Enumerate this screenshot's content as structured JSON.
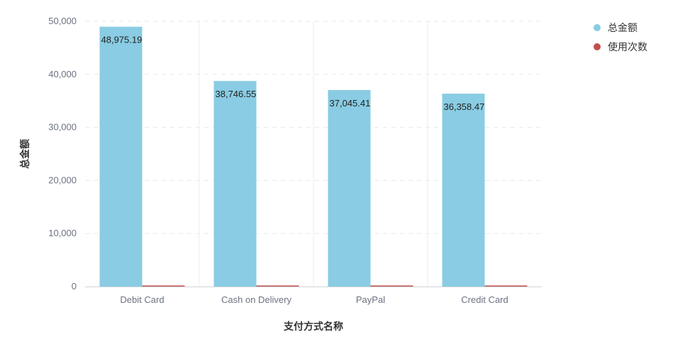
{
  "chart_data": {
    "type": "bar",
    "title": "",
    "xlabel": "支付方式名称",
    "ylabel": "总金额",
    "categories": [
      "Debit Card",
      "Cash on Delivery",
      "PayPal",
      "Credit Card"
    ],
    "series": [
      {
        "name": "总金额",
        "color": "#89CCE3",
        "values": [
          48975.19,
          38746.55,
          37045.41,
          36358.47
        ],
        "data_labels": [
          "48,975.19",
          "38,746.55",
          "37,045.41",
          "36,358.47"
        ]
      },
      {
        "name": "使用次数",
        "color": "#C0504D",
        "values": [
          5,
          4,
          4,
          4
        ]
      }
    ],
    "ylim": [
      0,
      50000
    ],
    "yticks": [
      0,
      10000,
      20000,
      30000,
      40000,
      50000
    ],
    "ytick_labels": [
      "0",
      "10,000",
      "20,000",
      "30,000",
      "40,000",
      "50,000"
    ],
    "grid": "dashed-horizontal",
    "legend_position": "top-right"
  }
}
